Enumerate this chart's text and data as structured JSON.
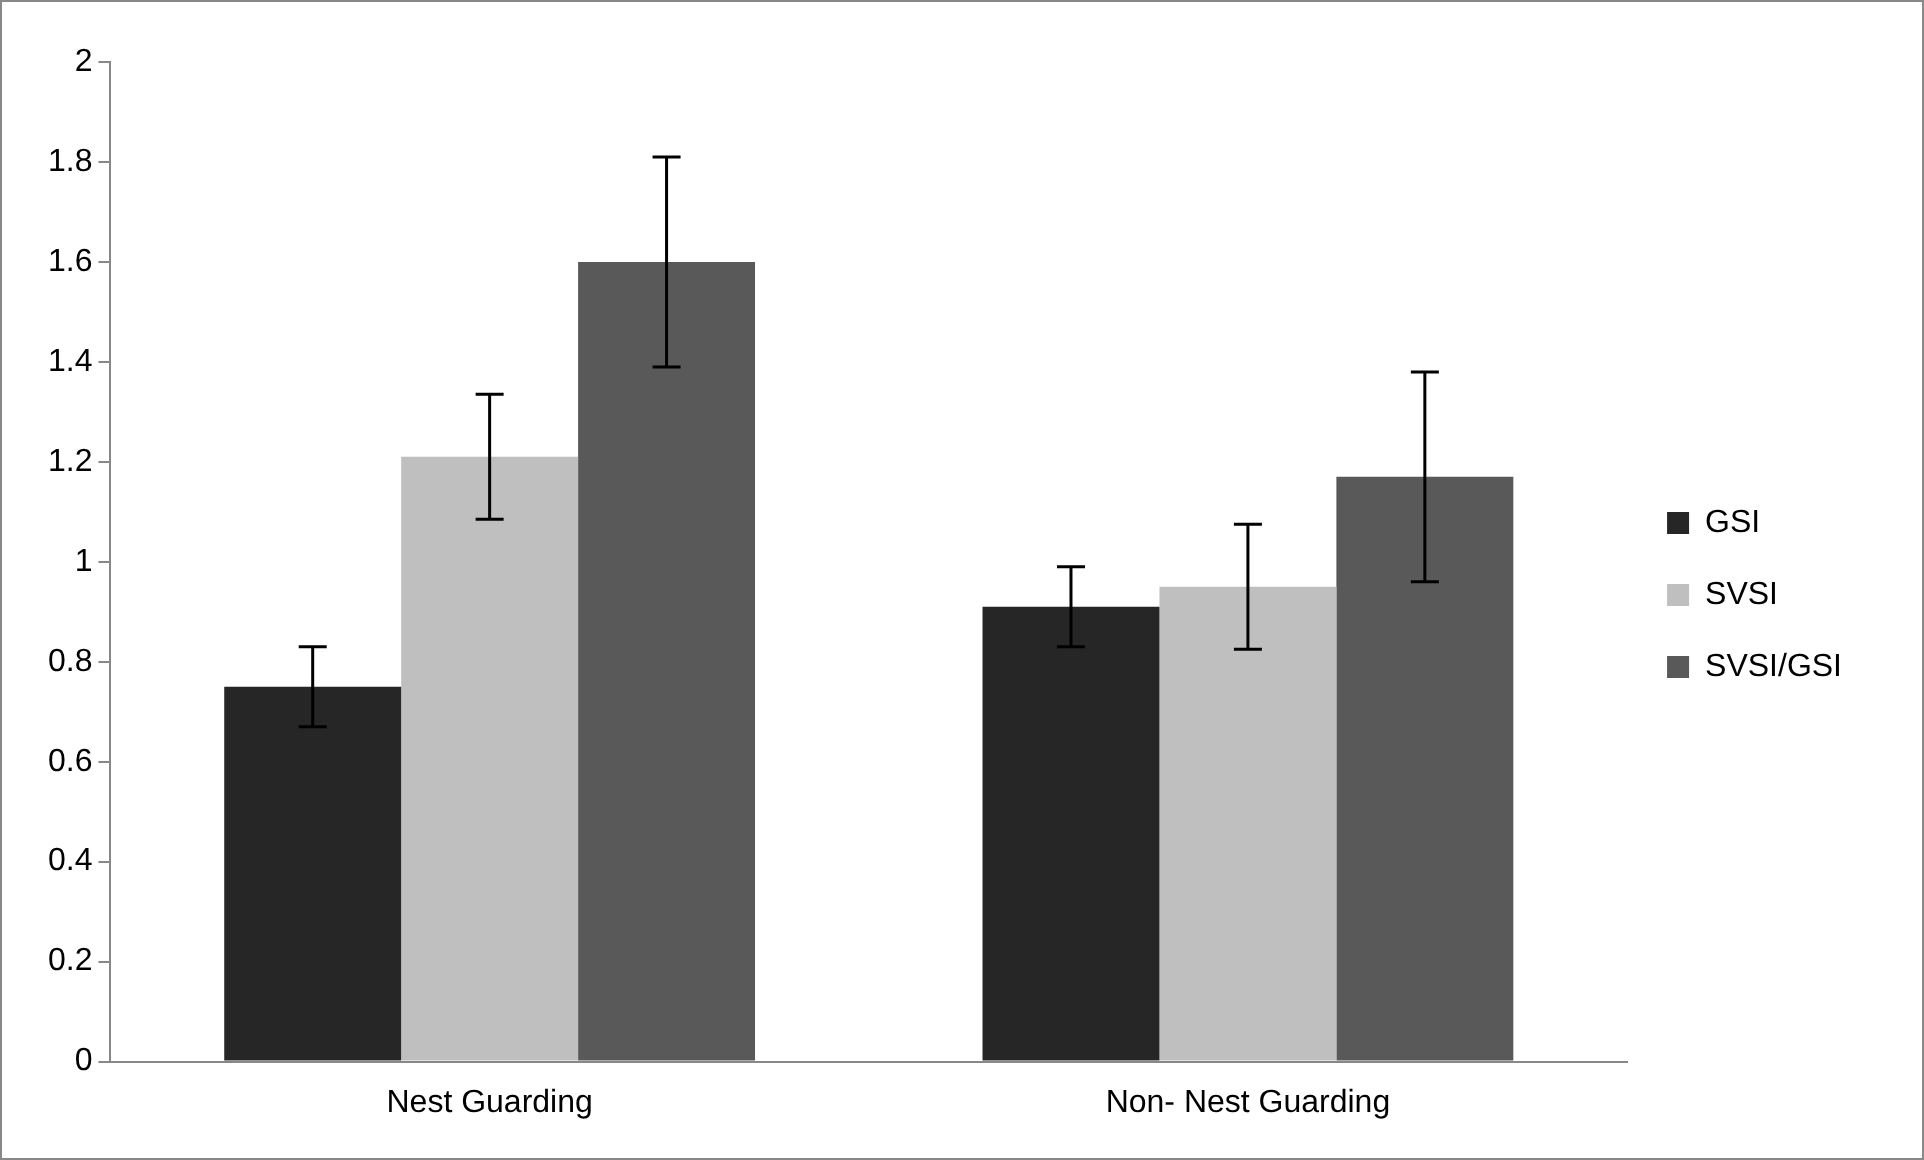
{
  "chart_data": {
    "type": "bar",
    "categories": [
      "Nest Guarding",
      "Non- Nest Guarding"
    ],
    "series": [
      {
        "name": "GSI",
        "color": "#262626",
        "values": [
          0.75,
          0.91
        ],
        "errors": [
          0.08,
          0.08
        ]
      },
      {
        "name": "SVSI",
        "color": "#bfbfbf",
        "values": [
          1.21,
          0.95
        ],
        "errors": [
          0.125,
          0.125
        ]
      },
      {
        "name": "SVSI/GSI",
        "color": "#595959",
        "values": [
          1.6,
          1.17
        ],
        "errors": [
          0.21,
          0.21
        ]
      }
    ],
    "ylim": [
      0,
      2
    ],
    "yticks": [
      0,
      0.2,
      0.4,
      0.6,
      0.8,
      1,
      1.2,
      1.4,
      1.6,
      1.8,
      2
    ],
    "grid": false,
    "legend": "right"
  }
}
